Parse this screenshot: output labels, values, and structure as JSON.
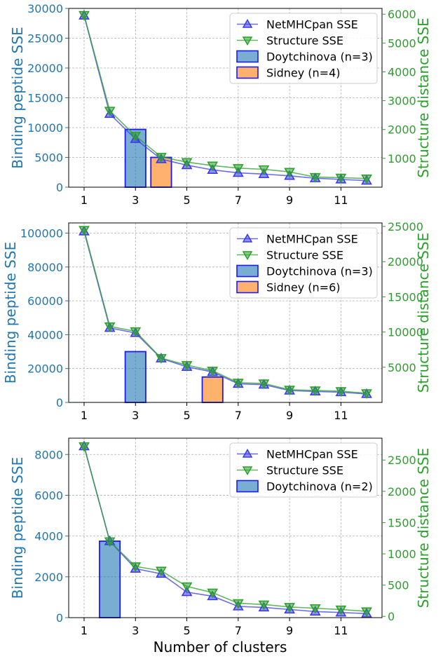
{
  "colors": {
    "left_axis": "#1f77b4",
    "right_axis": "#2ca02c",
    "netmhcpan_line": "#3b3bea",
    "structure_line": "#2ca02c",
    "doytchinova_fill": "#1f77b4",
    "sidney_fill": "#ff7f0e",
    "bar_edge": "#1a1aff",
    "grid": "#b0b0b0"
  },
  "figure": {
    "xlabel": "Number of clusters"
  },
  "chart_data": [
    {
      "type": "line",
      "x": [
        1,
        2,
        3,
        4,
        5,
        6,
        7,
        8,
        9,
        10,
        11,
        12
      ],
      "xticks": [
        "1",
        "3",
        "5",
        "7",
        "9",
        "11"
      ],
      "xtick_values": [
        1,
        3,
        5,
        7,
        9,
        11
      ],
      "xlim": [
        0.4,
        12.6
      ],
      "ylabel_left": "Binding peptide SSE",
      "ylabel_right": "Structure distance SSE",
      "ylim_left": [
        0,
        30000
      ],
      "ylim_right": [
        0,
        6200
      ],
      "yticks_left": [
        "0",
        "5000",
        "10000",
        "15000",
        "20000",
        "25000",
        "30000"
      ],
      "ytick_values_left": [
        0,
        5000,
        10000,
        15000,
        20000,
        25000,
        30000
      ],
      "yticks_right": [
        "1000",
        "2000",
        "3000",
        "4000",
        "5000",
        "6000"
      ],
      "ytick_values_right": [
        1000,
        2000,
        3000,
        4000,
        5000,
        6000
      ],
      "grid": true,
      "legend_position": "top-right",
      "series": [
        {
          "name": "NetMHCpan SSE",
          "axis": "left",
          "marker": "triangle-up",
          "values": [
            28800,
            12300,
            8100,
            4700,
            3700,
            2900,
            2400,
            2200,
            1900,
            1500,
            1300,
            1100
          ]
        },
        {
          "name": "Structure SSE",
          "axis": "right",
          "marker": "triangle-down",
          "values": [
            5970,
            2650,
            1780,
            1050,
            870,
            750,
            660,
            620,
            530,
            350,
            330,
            300
          ]
        }
      ],
      "bars": [
        {
          "name": "Doytchinova (n=3)",
          "x": 3,
          "value": 9700,
          "fill": "doytchinova"
        },
        {
          "name": "Sidney (n=4)",
          "x": 4,
          "value": 5000,
          "fill": "sidney"
        }
      ]
    },
    {
      "type": "line",
      "x": [
        1,
        2,
        3,
        4,
        5,
        6,
        7,
        8,
        9,
        10,
        11,
        12
      ],
      "xticks": [
        "1",
        "3",
        "5",
        "7",
        "9",
        "11"
      ],
      "xtick_values": [
        1,
        3,
        5,
        7,
        9,
        11
      ],
      "xlim": [
        0.4,
        12.6
      ],
      "ylabel_left": "Binding peptide SSE",
      "ylabel_right": "Structure distance SSE",
      "ylim_left": [
        0,
        106000
      ],
      "ylim_right": [
        0,
        25500
      ],
      "yticks_left": [
        "0",
        "20000",
        "40000",
        "60000",
        "80000",
        "100000"
      ],
      "ytick_values_left": [
        0,
        20000,
        40000,
        60000,
        80000,
        100000
      ],
      "yticks_right": [
        "5000",
        "10000",
        "15000",
        "20000",
        "25000"
      ],
      "ytick_values_right": [
        5000,
        10000,
        15000,
        20000,
        25000
      ],
      "grid": true,
      "legend_position": "top-right",
      "series": [
        {
          "name": "NetMHCpan SSE",
          "axis": "left",
          "marker": "triangle-up",
          "values": [
            101000,
            44000,
            41000,
            26000,
            21000,
            18000,
            11000,
            10500,
            7000,
            6500,
            6000,
            5000
          ]
        },
        {
          "name": "Structure SSE",
          "axis": "right",
          "marker": "triangle-down",
          "values": [
            24500,
            10800,
            10100,
            6300,
            5300,
            4500,
            2800,
            2700,
            1800,
            1700,
            1600,
            1300
          ]
        }
      ],
      "bars": [
        {
          "name": "Doytchinova (n=3)",
          "x": 3,
          "value": 30000,
          "fill": "doytchinova"
        },
        {
          "name": "Sidney (n=6)",
          "x": 6,
          "value": 15000,
          "fill": "sidney"
        }
      ]
    },
    {
      "type": "line",
      "x": [
        1,
        2,
        3,
        4,
        5,
        6,
        7,
        8,
        9,
        10,
        11,
        12
      ],
      "xticks": [
        "1",
        "3",
        "5",
        "7",
        "9",
        "11"
      ],
      "xtick_values": [
        1,
        3,
        5,
        7,
        9,
        11
      ],
      "xlim": [
        0.4,
        12.6
      ],
      "ylabel_left": "Binding peptide SSE",
      "ylabel_right": "Structure distance SSE",
      "ylim_left": [
        0,
        8800
      ],
      "ylim_right": [
        -20,
        2850
      ],
      "yticks_left": [
        "0",
        "2000",
        "4000",
        "6000",
        "8000"
      ],
      "ytick_values_left": [
        0,
        2000,
        4000,
        6000,
        8000
      ],
      "yticks_right": [
        "0",
        "500",
        "1000",
        "1500",
        "2000",
        "2500"
      ],
      "ytick_values_right": [
        0,
        500,
        1000,
        1500,
        2000,
        2500
      ],
      "grid": true,
      "legend_position": "top-right",
      "series": [
        {
          "name": "NetMHCpan SSE",
          "axis": "left",
          "marker": "triangle-up",
          "values": [
            8400,
            3750,
            2400,
            2150,
            1250,
            1050,
            550,
            500,
            400,
            300,
            250,
            200
          ]
        },
        {
          "name": "Structure SSE",
          "axis": "right",
          "marker": "triangle-down",
          "values": [
            2720,
            1200,
            800,
            730,
            480,
            380,
            210,
            190,
            150,
            130,
            110,
            80
          ]
        }
      ],
      "bars": [
        {
          "name": "Doytchinova (n=2)",
          "x": 2,
          "value": 3750,
          "fill": "doytchinova"
        }
      ]
    }
  ]
}
